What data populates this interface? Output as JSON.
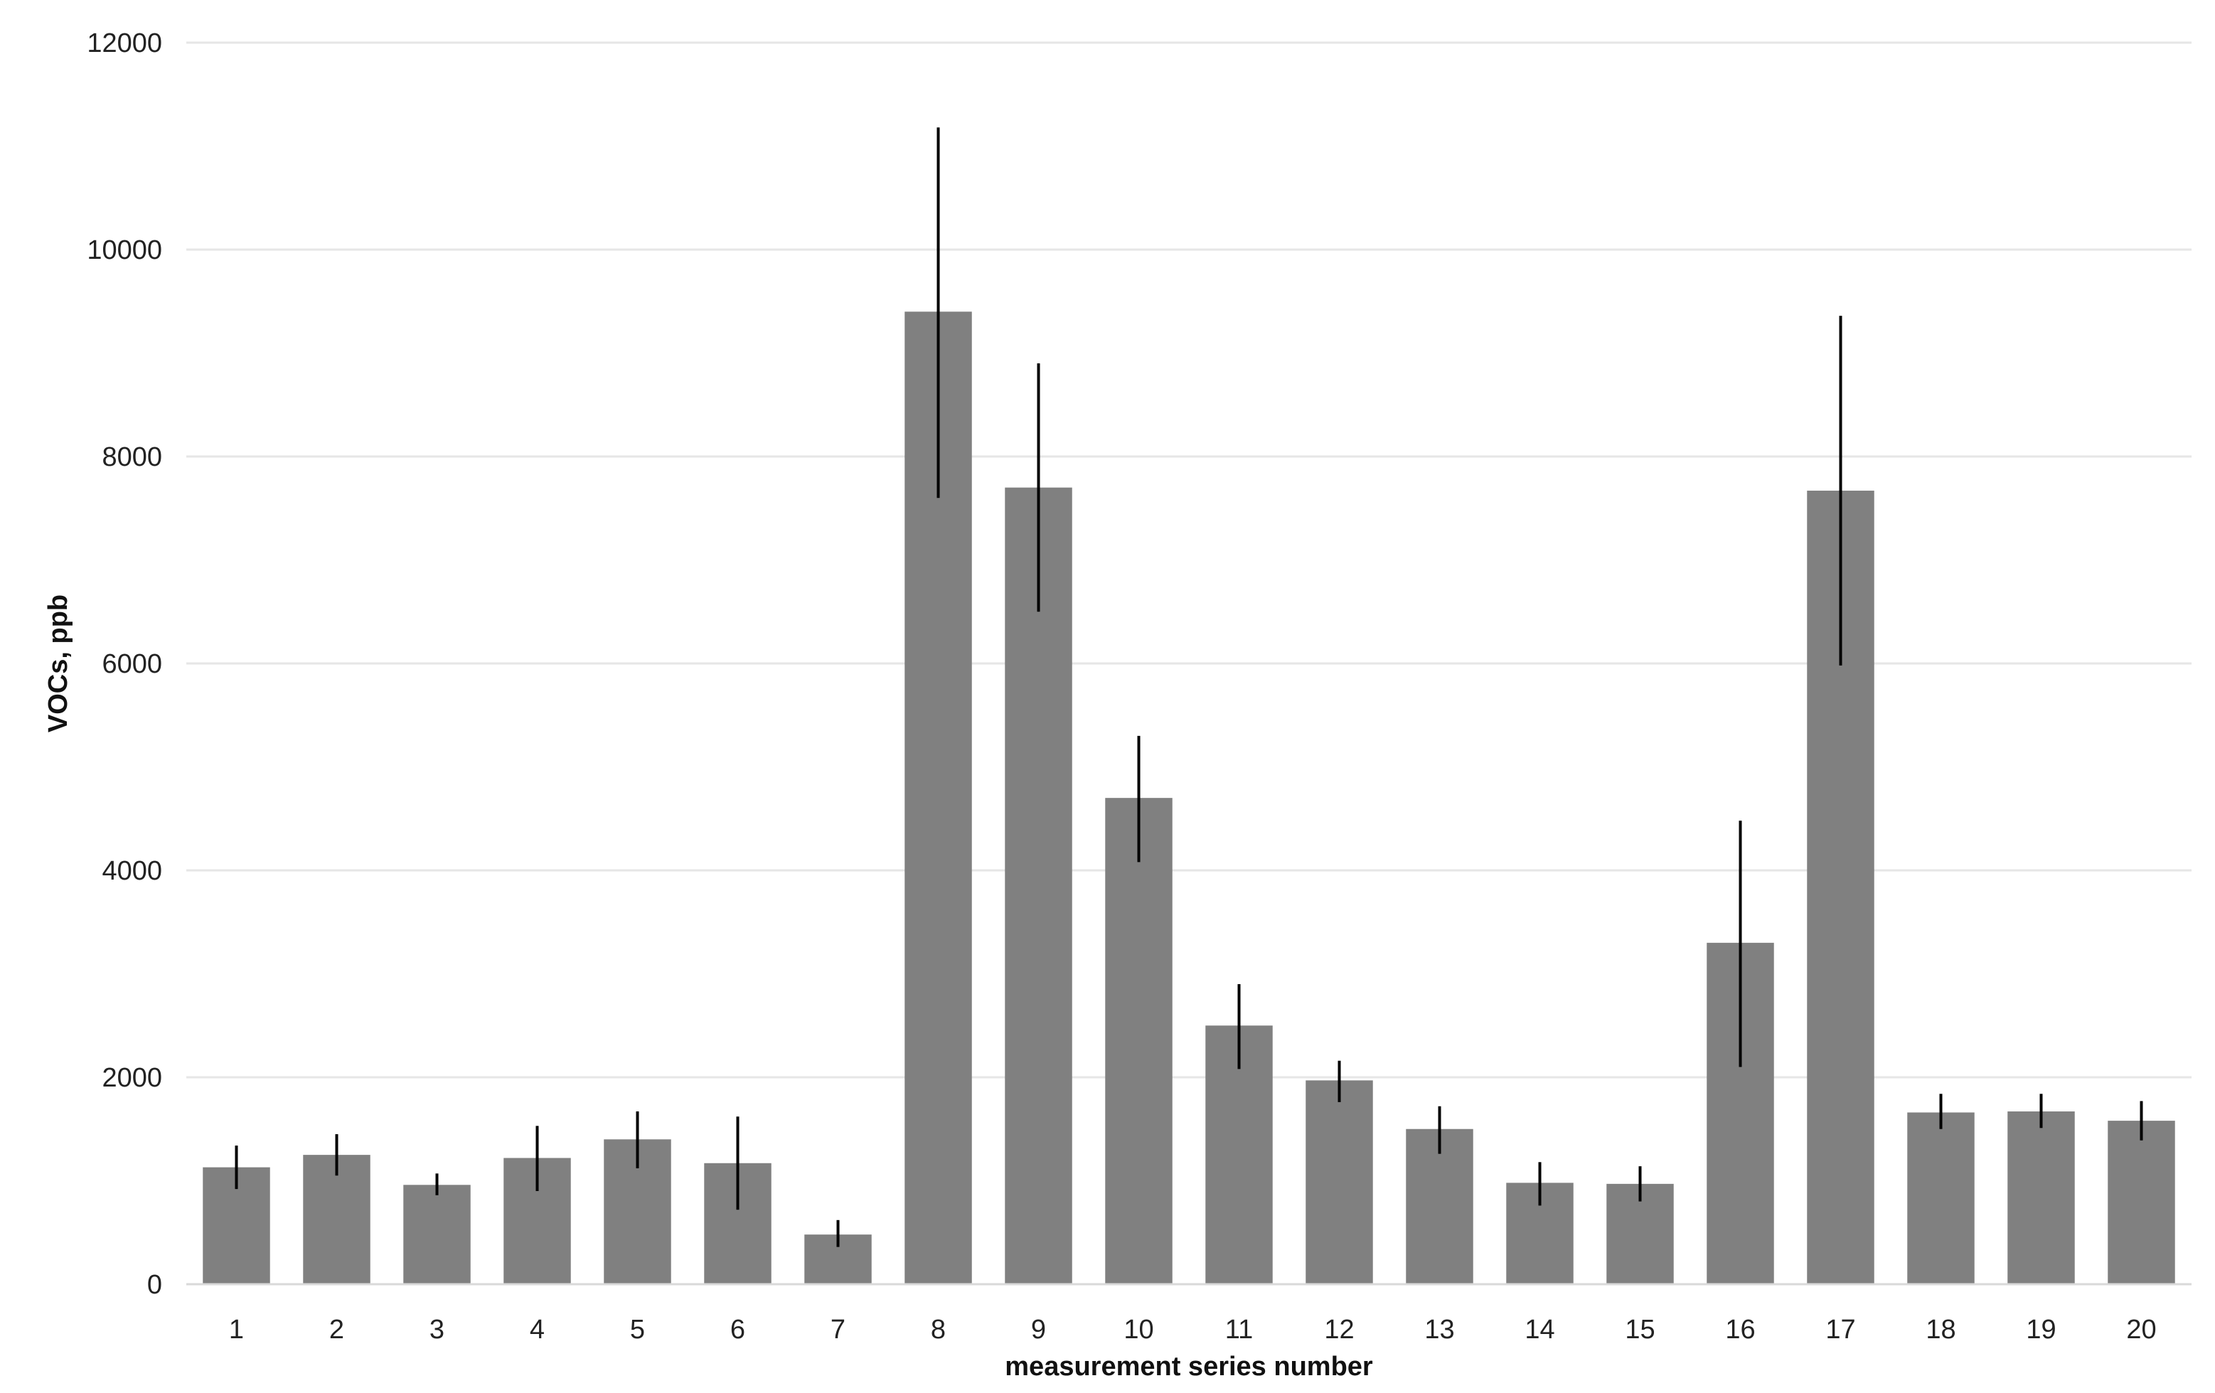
{
  "chart_data": {
    "type": "bar",
    "title": "",
    "xlabel": "measurement series number",
    "ylabel": "VOCs, ppb",
    "ylim": [
      0,
      12000
    ],
    "yticks": [
      0,
      2000,
      4000,
      6000,
      8000,
      10000,
      12000
    ],
    "grid": "horizontal",
    "categories": [
      "1",
      "2",
      "3",
      "4",
      "5",
      "6",
      "7",
      "8",
      "9",
      "10",
      "11",
      "12",
      "13",
      "14",
      "15",
      "16",
      "17",
      "18",
      "19",
      "20"
    ],
    "values": [
      1130,
      1250,
      960,
      1220,
      1400,
      1170,
      480,
      9400,
      7700,
      4700,
      2500,
      1970,
      1500,
      980,
      970,
      3300,
      7670,
      1660,
      1670,
      1580
    ],
    "error_low": [
      920,
      1050,
      860,
      900,
      1120,
      720,
      360,
      7600,
      6500,
      4080,
      2080,
      1760,
      1260,
      760,
      800,
      2100,
      5980,
      1500,
      1510,
      1390
    ],
    "error_high": [
      1340,
      1450,
      1070,
      1530,
      1670,
      1620,
      620,
      11180,
      8900,
      5300,
      2900,
      2160,
      1720,
      1180,
      1140,
      4480,
      9360,
      1840,
      1840,
      1770
    ],
    "colors": {
      "bar": "#808080",
      "error_bar": "#000000",
      "grid": "#e6e6e6"
    }
  }
}
